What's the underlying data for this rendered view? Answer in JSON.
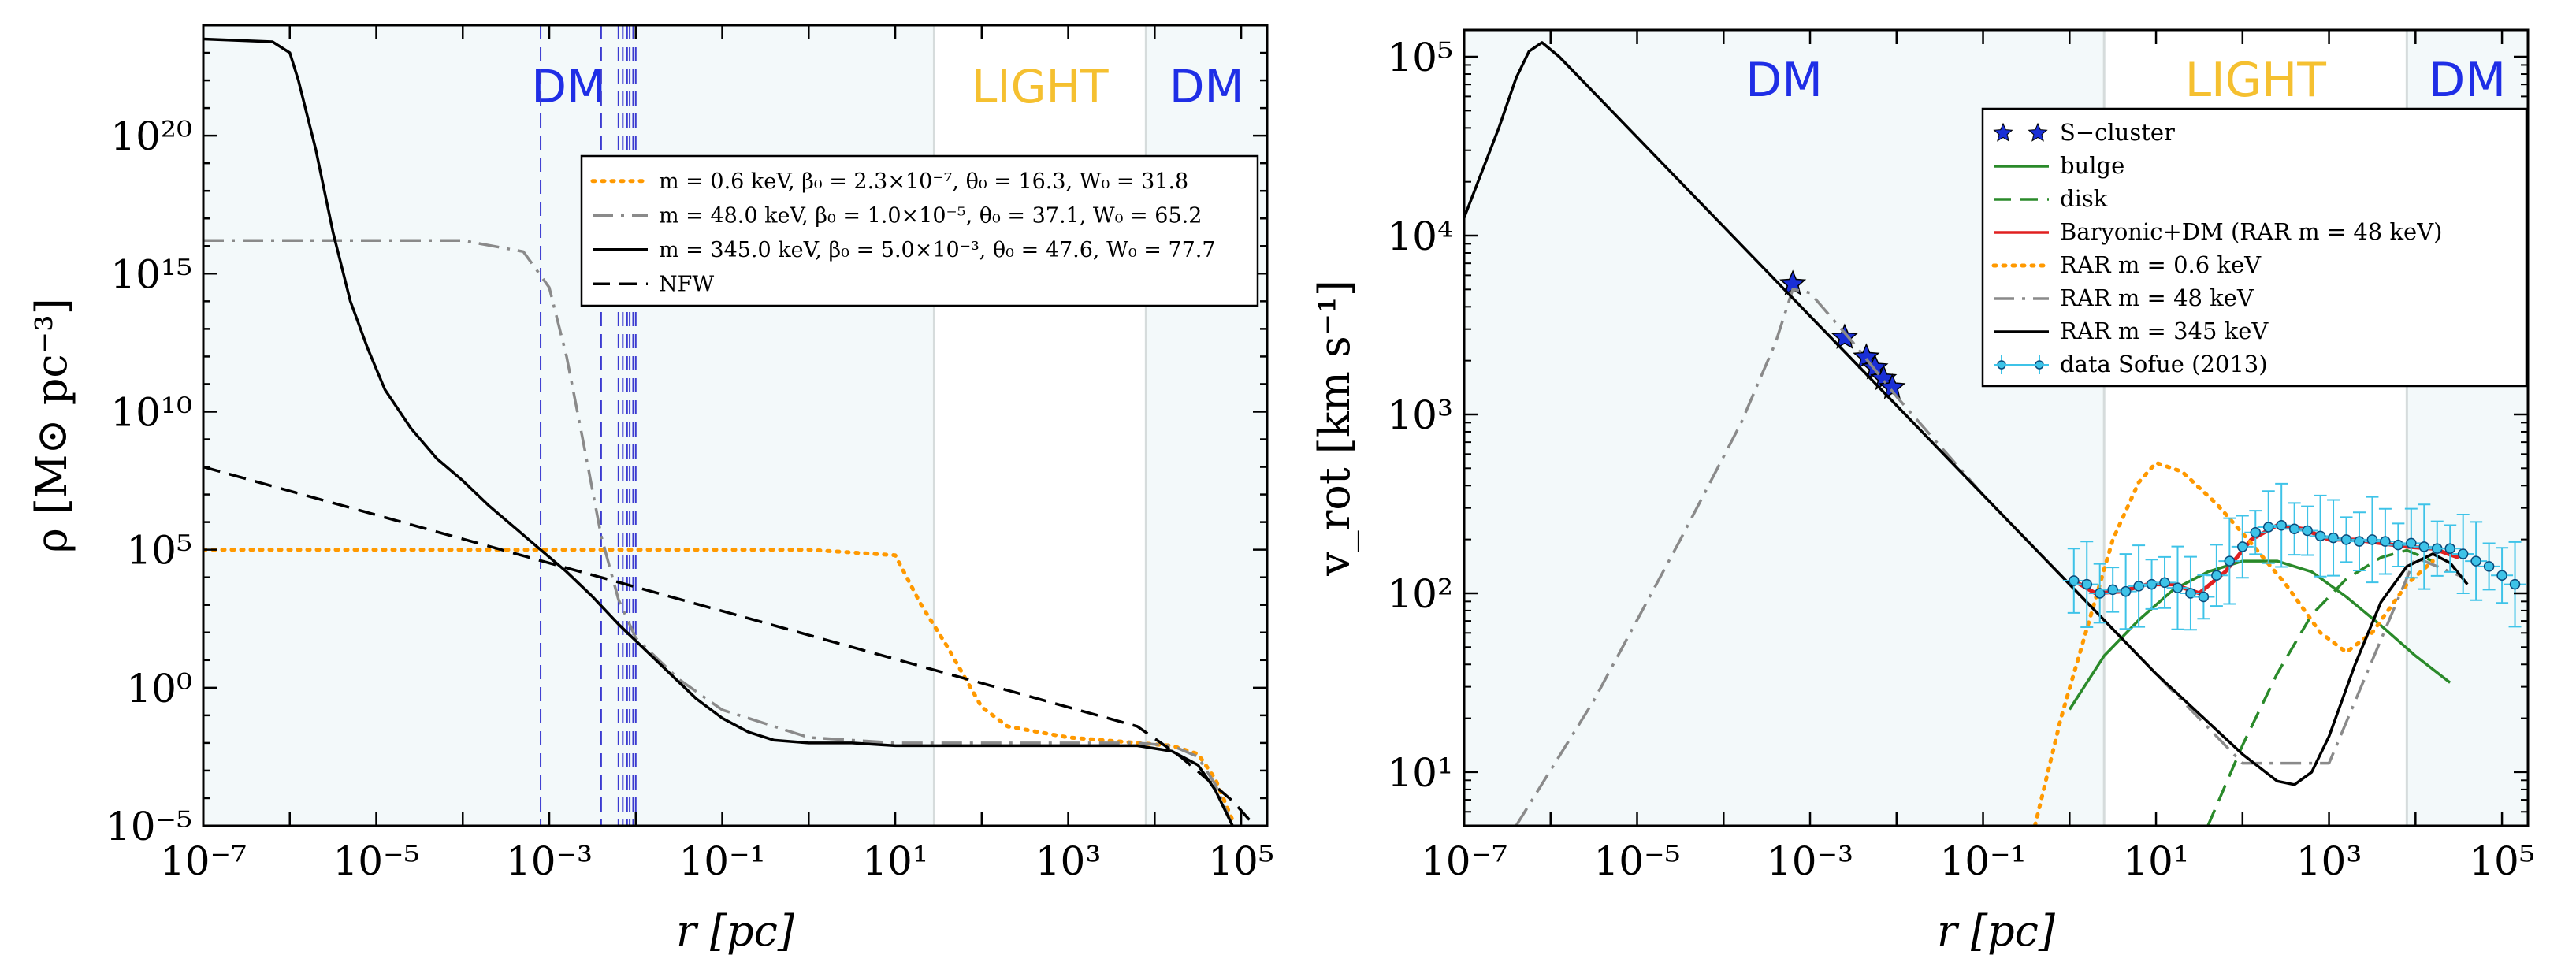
{
  "chart_data": [
    {
      "type": "line",
      "title": "",
      "xlabel": "r [pc]",
      "ylabel": "ρ [M⊙ pc⁻³]",
      "xscale": "log",
      "yscale": "log",
      "xlim_log10": [
        -7,
        5.3
      ],
      "ylim_log10": [
        -5,
        24
      ],
      "x_tick_labels": [
        "10⁻⁷",
        "10⁻⁵",
        "10⁻³",
        "10⁻¹",
        "10¹",
        "10³",
        "10⁵"
      ],
      "x_tick_log10": [
        -7,
        -5,
        -3,
        -1,
        1,
        3,
        5
      ],
      "y_tick_labels": [
        "10⁻⁵",
        "10⁰",
        "10⁵",
        "10¹⁰",
        "10¹⁵",
        "10²⁰"
      ],
      "y_tick_log10": [
        -5,
        0,
        5,
        10,
        15,
        20
      ],
      "regions": [
        {
          "label": "DM",
          "color": "#1f2ee6",
          "range_log10": [
            -7,
            1.45
          ]
        },
        {
          "label": "LIGHT",
          "color": "#f5c030",
          "range_log10": [
            1.45,
            3.9
          ]
        },
        {
          "label": "DM",
          "color": "#1f2ee6",
          "range_log10": [
            3.9,
            5.3
          ]
        }
      ],
      "vlines_log10": [
        -3.1,
        -2.4,
        -2.2,
        -2.15,
        -2.1,
        -2.07,
        -2.03,
        -2.0
      ],
      "legend_position": "upper-middle",
      "series": [
        {
          "name": "m = 0.6 keV, β₀ = 2.3×10⁻⁷, θ₀ = 16.3, W₀ = 31.8",
          "color": "#ff9900",
          "style": "dotted",
          "log_x": [
            -7,
            -3,
            0,
            1.0,
            1.3,
            1.6,
            2.0,
            2.3,
            3.0,
            3.8,
            4.2,
            4.5,
            4.7,
            4.9
          ],
          "log_y": [
            5.0,
            5.0,
            5.0,
            4.8,
            3.0,
            1.5,
            -0.7,
            -1.4,
            -1.8,
            -2.0,
            -2.1,
            -2.4,
            -3.3,
            -4.8
          ]
        },
        {
          "name": "m = 48.0 keV, β₀ = 1.0×10⁻⁵, θ₀ = 37.1, W₀ = 65.2",
          "color": "#8a8a8a",
          "style": "dashdot",
          "log_x": [
            -7,
            -4,
            -3.3,
            -3.0,
            -2.8,
            -2.6,
            -2.4,
            -2.2,
            -2.0,
            -1.5,
            -1.0,
            0.0,
            1.0,
            2.0,
            3.0,
            3.8,
            4.2,
            4.5,
            4.7,
            4.9
          ],
          "log_y": [
            16.2,
            16.2,
            15.8,
            14.5,
            12.0,
            8.8,
            5.5,
            3.2,
            1.8,
            0.3,
            -0.8,
            -1.8,
            -2.0,
            -2.0,
            -2.0,
            -2.0,
            -2.1,
            -2.5,
            -3.5,
            -5.0
          ]
        },
        {
          "name": "m = 345.0 keV, β₀ = 5.0×10⁻³, θ₀ = 47.6, W₀ = 77.7",
          "color": "#000000",
          "style": "solid",
          "log_x": [
            -7,
            -6.2,
            -6.0,
            -5.9,
            -5.7,
            -5.5,
            -5.3,
            -5.1,
            -4.9,
            -4.6,
            -4.3,
            -4.0,
            -3.7,
            -3.4,
            -3.1,
            -2.8,
            -2.5,
            -2.2,
            -1.9,
            -1.6,
            -1.3,
            -1.0,
            -0.7,
            -0.4,
            0.0,
            0.5,
            1.0,
            2.0,
            3.0,
            3.8,
            4.2,
            4.5,
            4.7,
            4.9
          ],
          "log_y": [
            23.5,
            23.4,
            23.0,
            22.0,
            19.5,
            16.5,
            14.0,
            12.3,
            10.8,
            9.4,
            8.3,
            7.5,
            6.6,
            5.8,
            5.0,
            4.2,
            3.3,
            2.3,
            1.4,
            0.5,
            -0.4,
            -1.1,
            -1.6,
            -1.9,
            -2.0,
            -2.0,
            -2.1,
            -2.1,
            -2.1,
            -2.1,
            -2.3,
            -2.8,
            -3.7,
            -5.0
          ]
        },
        {
          "name": "NFW",
          "color": "#000000",
          "style": "dashed",
          "log_x": [
            -7,
            3.8,
            4.3,
            4.6,
            4.9,
            5.1
          ],
          "log_y": [
            8.0,
            -1.4,
            -2.5,
            -3.3,
            -4.1,
            -4.8
          ]
        }
      ]
    },
    {
      "type": "line",
      "title": "",
      "xlabel": "r [pc]",
      "ylabel": "v_rot [km s⁻¹]",
      "xscale": "log",
      "yscale": "log",
      "xlim_log10": [
        -7,
        5.3
      ],
      "ylim_log10": [
        0.7,
        5.15
      ],
      "x_tick_labels": [
        "10⁻⁷",
        "10⁻⁵",
        "10⁻³",
        "10⁻¹",
        "10¹",
        "10³",
        "10⁵"
      ],
      "x_tick_log10": [
        -7,
        -5,
        -3,
        -1,
        1,
        3,
        5
      ],
      "y_tick_labels": [
        "10¹",
        "10²",
        "10³",
        "10⁴",
        "10⁵"
      ],
      "y_tick_log10": [
        1,
        2,
        3,
        4,
        5
      ],
      "regions": [
        {
          "label": "DM",
          "color": "#1f2ee6",
          "range_log10": [
            -7,
            0.4
          ]
        },
        {
          "label": "LIGHT",
          "color": "#f5c030",
          "range_log10": [
            0.4,
            3.9
          ]
        },
        {
          "label": "DM",
          "color": "#1f2ee6",
          "range_log10": [
            3.9,
            5.3
          ]
        }
      ],
      "legend_position": "upper-right",
      "series": [
        {
          "name": "S−cluster",
          "color": "#1a2fd6",
          "style": "star",
          "log_x": [
            -3.2,
            -2.6,
            -2.35,
            -2.25,
            -2.15,
            -2.05
          ],
          "log_y": [
            3.73,
            3.43,
            3.32,
            3.26,
            3.2,
            3.15
          ]
        },
        {
          "name": "bulge",
          "color": "#2a8a2a",
          "style": "solid",
          "log_x": [
            0.0,
            0.4,
            0.8,
            1.2,
            1.6,
            2.0,
            2.4,
            2.8,
            3.2,
            3.6,
            4.0,
            4.4
          ],
          "log_y": [
            1.35,
            1.65,
            1.85,
            2.02,
            2.12,
            2.18,
            2.18,
            2.12,
            1.98,
            1.82,
            1.65,
            1.5
          ]
        },
        {
          "name": "disk",
          "color": "#2a8a2a",
          "style": "dashed",
          "log_x": [
            1.6,
            2.0,
            2.4,
            2.8,
            3.2,
            3.6,
            3.9,
            4.2
          ],
          "log_y": [
            0.7,
            1.15,
            1.55,
            1.88,
            2.08,
            2.2,
            2.24,
            2.18
          ]
        },
        {
          "name": "Baryonic+DM (RAR  m = 48 keV)",
          "color": "#e02020",
          "style": "solid",
          "log_x": [
            0.05,
            0.3,
            0.6,
            0.9,
            1.2,
            1.5,
            1.8,
            2.1,
            2.4,
            2.7,
            3.0,
            3.3,
            3.6,
            3.9,
            4.2,
            4.5
          ],
          "log_y": [
            2.07,
            2.0,
            2.01,
            2.05,
            2.05,
            2.0,
            2.12,
            2.3,
            2.38,
            2.36,
            2.3,
            2.3,
            2.28,
            2.26,
            2.25,
            2.2
          ]
        },
        {
          "name": "RAR  m = 0.6 keV",
          "color": "#ff9900",
          "style": "dotted",
          "log_x": [
            -0.4,
            -0.1,
            0.2,
            0.5,
            0.8,
            1.0,
            1.3,
            1.7,
            2.1,
            2.5,
            2.9,
            3.2,
            3.5,
            3.9,
            4.2
          ],
          "log_y": [
            0.7,
            1.3,
            1.8,
            2.3,
            2.62,
            2.73,
            2.68,
            2.5,
            2.28,
            2.05,
            1.78,
            1.67,
            1.78,
            2.05,
            2.18
          ]
        },
        {
          "name": "RAR  m = 48 keV",
          "color": "#8a8a8a",
          "style": "dashdot",
          "log_x": [
            -6.4,
            -5.5,
            -4.5,
            -3.8,
            -3.4,
            -3.2,
            -3.0,
            -2.5,
            -2.0,
            -1.0,
            0.0,
            1.0,
            2.0,
            3.0,
            4.0,
            4.5
          ],
          "log_y": [
            0.7,
            1.4,
            2.3,
            2.95,
            3.4,
            3.7,
            3.68,
            3.4,
            3.1,
            2.55,
            2.05,
            1.55,
            1.05,
            1.05,
            2.2,
            2.1
          ]
        },
        {
          "name": "RAR  m = 345 keV",
          "color": "#000000",
          "style": "solid",
          "log_x": [
            -7,
            -6.6,
            -6.4,
            -6.25,
            -6.1,
            -5.9,
            -5.5,
            -5.0,
            -4.0,
            -3.0,
            -2.0,
            -1.0,
            0.0,
            1.0,
            2.0,
            2.4,
            2.6,
            2.8,
            3.0,
            3.3,
            3.6,
            3.9,
            4.2,
            4.4,
            4.6
          ],
          "log_y": [
            4.1,
            4.6,
            4.88,
            5.03,
            5.08,
            5.0,
            4.8,
            4.55,
            4.05,
            3.55,
            3.05,
            2.55,
            2.05,
            1.55,
            1.1,
            0.95,
            0.93,
            1.0,
            1.2,
            1.6,
            1.95,
            2.15,
            2.22,
            2.17,
            2.05
          ]
        },
        {
          "name": "data Sofue (2013)",
          "color": "#3ec3e8",
          "style": "errorbar",
          "log_x": [
            0.05,
            0.2,
            0.35,
            0.5,
            0.65,
            0.8,
            0.95,
            1.1,
            1.25,
            1.4,
            1.55,
            1.7,
            1.85,
            2.0,
            2.15,
            2.3,
            2.45,
            2.6,
            2.75,
            2.9,
            3.05,
            3.2,
            3.35,
            3.5,
            3.65,
            3.8,
            3.95,
            4.1,
            4.25,
            4.4,
            4.55,
            4.7,
            4.85,
            5.0,
            5.15
          ],
          "log_y": [
            2.07,
            2.05,
            2.0,
            2.02,
            2.01,
            2.04,
            2.05,
            2.06,
            2.03,
            2.0,
            1.98,
            2.1,
            2.18,
            2.26,
            2.34,
            2.37,
            2.38,
            2.36,
            2.35,
            2.32,
            2.31,
            2.3,
            2.29,
            2.3,
            2.29,
            2.27,
            2.28,
            2.26,
            2.25,
            2.25,
            2.22,
            2.18,
            2.15,
            2.1,
            2.05
          ]
        }
      ]
    }
  ]
}
